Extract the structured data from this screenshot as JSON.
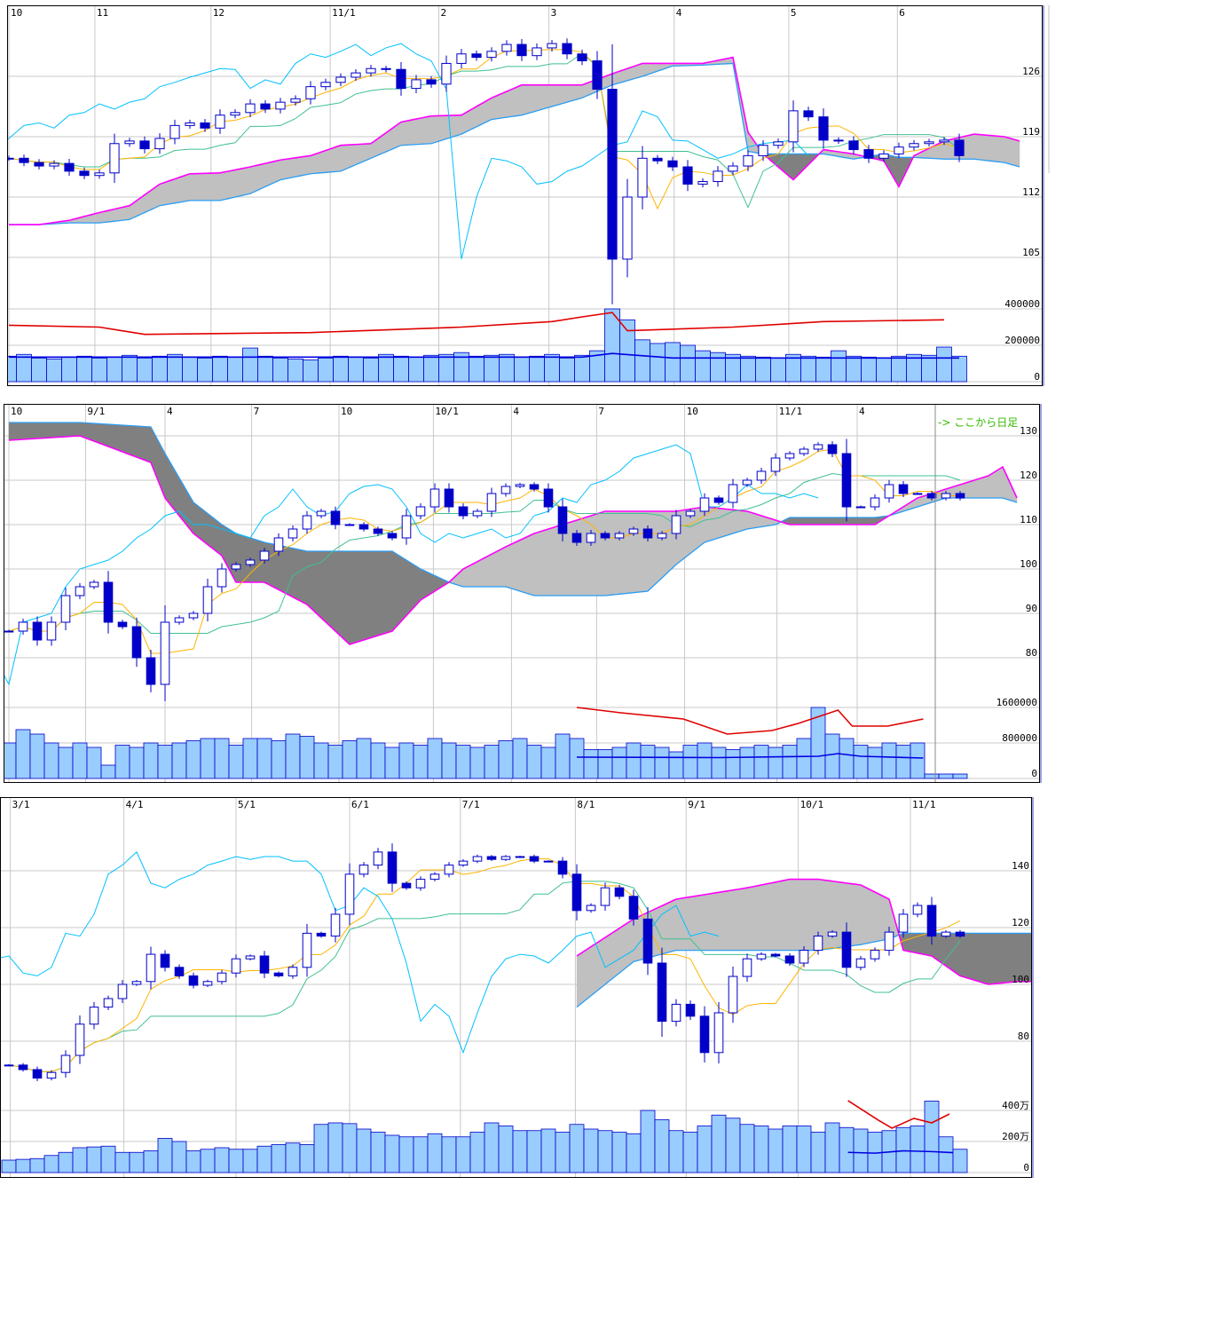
{
  "colors": {
    "up_body": "#ffffff",
    "candle": "#0000c8",
    "tenkan": "#ffb400",
    "kijun": "#40c090",
    "chikou": "#00c0ff",
    "span_a": "#ff00ff",
    "span_b": "#2a9df4",
    "cloud_bull": "#c0c0c0",
    "cloud_bear": "#808080",
    "volume": "#99ccff",
    "volume_edge": "#0000c8",
    "vol_line_red": "#e00000",
    "vol_line_blue": "#0000e0",
    "grid": "#c8c8c8",
    "note": "#33bb00"
  },
  "chart_data": [
    {
      "type": "candlestick",
      "title": "",
      "x_labels": [
        {
          "at": 0,
          "text": "10"
        },
        {
          "at": 5.7,
          "text": "11"
        },
        {
          "at": 13.4,
          "text": "12"
        },
        {
          "at": 21.3,
          "text": "11/1"
        },
        {
          "at": 28.5,
          "text": "2"
        },
        {
          "at": 35.8,
          "text": "3"
        },
        {
          "at": 44.1,
          "text": "4"
        },
        {
          "at": 51.7,
          "text": "5"
        },
        {
          "at": 58.9,
          "text": "6"
        }
      ],
      "price_ticks": [
        {
          "v": 126,
          "text": "126"
        },
        {
          "v": 119,
          "text": "119"
        },
        {
          "v": 112,
          "text": "112"
        },
        {
          "v": 105,
          "text": "105"
        }
      ],
      "volume_ticks": [
        {
          "v": 400000,
          "text": "400000"
        },
        {
          "v": 200000,
          "text": "200000"
        },
        {
          "v": 0,
          "text": "0"
        }
      ],
      "close": [
        116.5,
        116.0,
        115.6,
        115.9,
        115.0,
        114.5,
        114.8,
        118.2,
        118.5,
        117.6,
        118.8,
        120.3,
        120.6,
        120.0,
        121.5,
        121.8,
        122.8,
        122.2,
        123.0,
        123.4,
        124.8,
        125.3,
        125.9,
        126.4,
        126.9,
        126.8,
        124.6,
        125.6,
        125.1,
        127.5,
        128.6,
        128.2,
        128.9,
        129.7,
        128.4,
        129.3,
        129.8,
        128.6,
        127.8,
        124.5,
        104.8,
        112.0,
        116.5,
        116.2,
        115.5,
        113.5,
        113.8,
        115.0,
        115.6,
        116.8,
        118.0,
        118.4,
        122.0,
        121.3,
        118.6,
        118.5,
        117.5,
        116.5,
        117.0,
        117.8,
        118.2,
        118.4,
        118.6,
        116.8
      ],
      "volume": [
        140000,
        150000,
        130000,
        125000,
        135000,
        140000,
        130000,
        135000,
        145000,
        130000,
        140000,
        150000,
        135000,
        130000,
        140000,
        135000,
        185000,
        140000,
        130000,
        125000,
        120000,
        130000,
        140000,
        135000,
        130000,
        150000,
        140000,
        135000,
        145000,
        150000,
        160000,
        140000,
        145000,
        150000,
        135000,
        140000,
        150000,
        130000,
        145000,
        170000,
        400000,
        340000,
        230000,
        210000,
        215000,
        200000,
        170000,
        160000,
        150000,
        140000,
        135000,
        130000,
        150000,
        140000,
        135000,
        170000,
        140000,
        135000,
        130000,
        140000,
        150000,
        145000,
        190000,
        140000
      ],
      "cloud": [
        {
          "i": 0,
          "a": 108.8,
          "b": 108.8
        },
        {
          "i": 2,
          "a": 108.8,
          "b": 108.8
        },
        {
          "i": 4,
          "a": 109.3,
          "b": 109.0
        },
        {
          "i": 6,
          "a": 110.2,
          "b": 109.0
        },
        {
          "i": 8,
          "a": 111.0,
          "b": 109.4
        },
        {
          "i": 10,
          "a": 113.5,
          "b": 111.0
        },
        {
          "i": 12,
          "a": 114.7,
          "b": 111.6
        },
        {
          "i": 14,
          "a": 114.8,
          "b": 111.6
        },
        {
          "i": 16,
          "a": 115.5,
          "b": 112.4
        },
        {
          "i": 18,
          "a": 116.3,
          "b": 114.0
        },
        {
          "i": 20,
          "a": 116.8,
          "b": 114.7
        },
        {
          "i": 22,
          "a": 118.0,
          "b": 115.0
        },
        {
          "i": 24,
          "a": 118.2,
          "b": 116.5
        },
        {
          "i": 26,
          "a": 120.7,
          "b": 118.0
        },
        {
          "i": 28,
          "a": 121.4,
          "b": 118.2
        },
        {
          "i": 30,
          "a": 121.5,
          "b": 119.3
        },
        {
          "i": 32,
          "a": 123.5,
          "b": 121.0
        },
        {
          "i": 34,
          "a": 125.0,
          "b": 121.5
        },
        {
          "i": 36,
          "a": 125.0,
          "b": 122.5
        },
        {
          "i": 38,
          "a": 125.0,
          "b": 123.5
        },
        {
          "i": 40,
          "a": 126.3,
          "b": 125.0
        },
        {
          "i": 42,
          "a": 127.5,
          "b": 126.0
        },
        {
          "i": 44,
          "a": 127.5,
          "b": 127.2
        },
        {
          "i": 46,
          "a": 127.5,
          "b": 127.3
        },
        {
          "i": 48,
          "a": 128.2,
          "b": 127.5
        },
        {
          "i": 49,
          "a": 119.5,
          "b": 117.3
        },
        {
          "i": 50,
          "a": 117.0,
          "b": 117.0
        },
        {
          "i": 52,
          "a": 114.0,
          "b": 117.0
        },
        {
          "i": 54,
          "a": 117.5,
          "b": 117.0
        },
        {
          "i": 56,
          "a": 117.0,
          "b": 116.4
        },
        {
          "i": 58,
          "a": 116.2,
          "b": 117.0
        },
        {
          "i": 59,
          "a": 113.2,
          "b": 116.6
        },
        {
          "i": 60,
          "a": 116.8,
          "b": 116.6
        },
        {
          "i": 62,
          "a": 118.5,
          "b": 116.4
        },
        {
          "i": 64,
          "a": 119.3,
          "b": 116.4
        },
        {
          "i": 66,
          "a": 119.0,
          "b": 116.0
        },
        {
          "i": 67,
          "a": 118.5,
          "b": 115.5
        }
      ],
      "vol_line_red": [
        {
          "i": 0,
          "v": 310000
        },
        {
          "i": 6,
          "v": 300000
        },
        {
          "i": 9,
          "v": 260000
        },
        {
          "i": 20,
          "v": 270000
        },
        {
          "i": 30,
          "v": 300000
        },
        {
          "i": 36,
          "v": 330000
        },
        {
          "i": 38,
          "v": 356000
        },
        {
          "i": 40,
          "v": 380000
        },
        {
          "i": 41,
          "v": 280000
        },
        {
          "i": 48,
          "v": 300000
        },
        {
          "i": 54,
          "v": 330000
        },
        {
          "i": 62,
          "v": 340000
        }
      ],
      "vol_line_blue": [
        {
          "i": 0,
          "v": 135000
        },
        {
          "i": 38,
          "v": 135000
        },
        {
          "i": 40,
          "v": 155000
        },
        {
          "i": 44,
          "v": 130000
        },
        {
          "i": 63,
          "v": 130000
        }
      ]
    },
    {
      "type": "candlestick",
      "title": "",
      "note": "-> ここから日足",
      "note_at": 65.25,
      "x_labels": [
        {
          "at": 0,
          "text": "10"
        },
        {
          "at": 5.4,
          "text": "9/1"
        },
        {
          "at": 11,
          "text": "4"
        },
        {
          "at": 17.1,
          "text": "7"
        },
        {
          "at": 23.25,
          "text": "10"
        },
        {
          "at": 29.9,
          "text": "10/1"
        },
        {
          "at": 35.4,
          "text": "4"
        },
        {
          "at": 41.4,
          "text": "7"
        },
        {
          "at": 47.6,
          "text": "10"
        },
        {
          "at": 54.1,
          "text": "11/1"
        },
        {
          "at": 59.75,
          "text": "4"
        }
      ],
      "price_ticks": [
        {
          "v": 130,
          "text": "130"
        },
        {
          "v": 120,
          "text": "120"
        },
        {
          "v": 110,
          "text": "110"
        },
        {
          "v": 100,
          "text": "100"
        },
        {
          "v": 90,
          "text": "90"
        },
        {
          "v": 80,
          "text": "80"
        }
      ],
      "volume_ticks": [
        {
          "v": 1600000,
          "text": "1600000"
        },
        {
          "v": 800000,
          "text": "800000"
        },
        {
          "v": 0,
          "text": "0"
        }
      ],
      "close": [
        86,
        88,
        84,
        88,
        94,
        96,
        97,
        88,
        87,
        80,
        74,
        88,
        89,
        90,
        96,
        100,
        101,
        102,
        104,
        107,
        109,
        112,
        113,
        110,
        110,
        109,
        108,
        107,
        112,
        114,
        118,
        114,
        112,
        113,
        117,
        118.6,
        119,
        118,
        114,
        108,
        106,
        108,
        107,
        108,
        109,
        107,
        108,
        112,
        113,
        116,
        115,
        119,
        120,
        122,
        125,
        126,
        127,
        128,
        126,
        114,
        114,
        116,
        119,
        117,
        117,
        116,
        117,
        116
      ],
      "volume": [
        800000,
        1100000,
        1000000,
        800000,
        700000,
        800000,
        700000,
        300000,
        750000,
        700000,
        800000,
        750000,
        800000,
        850000,
        900000,
        900000,
        750000,
        900000,
        900000,
        850000,
        1000000,
        950000,
        800000,
        750000,
        850000,
        900000,
        800000,
        700000,
        800000,
        750000,
        900000,
        800000,
        750000,
        700000,
        750000,
        850000,
        900000,
        750000,
        700000,
        1000000,
        900000,
        650000,
        650000,
        700000,
        800000,
        750000,
        700000,
        600000,
        750000,
        800000,
        700000,
        650000,
        700000,
        750000,
        700000,
        750000,
        900000,
        1600000,
        1000000,
        900000,
        750000,
        700000,
        800000,
        750000,
        800000,
        100000,
        100000,
        100000
      ],
      "cloud": [
        {
          "i": 0,
          "a": 129,
          "b": 133
        },
        {
          "i": 5,
          "a": 130,
          "b": 133
        },
        {
          "i": 10,
          "a": 124,
          "b": 132
        },
        {
          "i": 11,
          "a": 116,
          "b": 126
        },
        {
          "i": 13,
          "a": 108,
          "b": 115
        },
        {
          "i": 15,
          "a": 103,
          "b": 110
        },
        {
          "i": 16,
          "a": 97,
          "b": 108
        },
        {
          "i": 18,
          "a": 97,
          "b": 106
        },
        {
          "i": 21,
          "a": 92,
          "b": 104
        },
        {
          "i": 24,
          "a": 83,
          "b": 104
        },
        {
          "i": 27,
          "a": 86,
          "b": 104
        },
        {
          "i": 29,
          "a": 93,
          "b": 100
        },
        {
          "i": 31,
          "a": 97,
          "b": 97
        },
        {
          "i": 32,
          "a": 100,
          "b": 96
        },
        {
          "i": 35,
          "a": 105,
          "b": 96
        },
        {
          "i": 37,
          "a": 108,
          "b": 94
        },
        {
          "i": 42,
          "a": 113,
          "b": 94
        },
        {
          "i": 45,
          "a": 113,
          "b": 95
        },
        {
          "i": 47,
          "a": 113,
          "b": 101
        },
        {
          "i": 49,
          "a": 114,
          "b": 106
        },
        {
          "i": 52,
          "a": 113,
          "b": 109
        },
        {
          "i": 54,
          "a": 111,
          "b": 110
        },
        {
          "i": 55,
          "a": 110,
          "b": 111.6
        },
        {
          "i": 61,
          "a": 110,
          "b": 111.6
        },
        {
          "i": 62,
          "a": 112,
          "b": 112
        },
        {
          "i": 64,
          "a": 116,
          "b": 114
        },
        {
          "i": 66,
          "a": 118,
          "b": 116
        },
        {
          "i": 69,
          "a": 121,
          "b": 116
        },
        {
          "i": 70,
          "a": 123,
          "b": 116
        },
        {
          "i": 71,
          "a": 116,
          "b": 115
        }
      ],
      "vol_line_red": [
        {
          "i": 40,
          "v": 1600000
        },
        {
          "i": 43.1,
          "v": 1480000
        },
        {
          "i": 47.5,
          "v": 1340000
        },
        {
          "i": 50.6,
          "v": 1000000
        },
        {
          "i": 53.75,
          "v": 1080000
        },
        {
          "i": 55.6,
          "v": 1240000
        },
        {
          "i": 58.4,
          "v": 1540000
        },
        {
          "i": 59.4,
          "v": 1180000
        },
        {
          "i": 61.9,
          "v": 1180000
        },
        {
          "i": 64.4,
          "v": 1340000
        }
      ],
      "vol_line_blue": [
        {
          "i": 40,
          "v": 480000
        },
        {
          "i": 50,
          "v": 470000
        },
        {
          "i": 57,
          "v": 500000
        },
        {
          "i": 58.4,
          "v": 560000
        },
        {
          "i": 60,
          "v": 500000
        },
        {
          "i": 64.4,
          "v": 460000
        }
      ]
    },
    {
      "type": "candlestick",
      "title": "",
      "x_labels": [
        {
          "at": 0.1,
          "text": "3/1"
        },
        {
          "at": 8.1,
          "text": "4/1"
        },
        {
          "at": 16,
          "text": "5/1"
        },
        {
          "at": 24,
          "text": "6/1"
        },
        {
          "at": 31.8,
          "text": "7/1"
        },
        {
          "at": 39.9,
          "text": "8/1"
        },
        {
          "at": 47.7,
          "text": "9/1"
        },
        {
          "at": 55.6,
          "text": "10/1"
        },
        {
          "at": 63.5,
          "text": "11/1"
        }
      ],
      "price_ticks": [
        {
          "v": 140,
          "text": "140"
        },
        {
          "v": 120,
          "text": "120"
        },
        {
          "v": 100,
          "text": "100"
        },
        {
          "v": 80,
          "text": "80"
        }
      ],
      "volume_ticks": [
        {
          "v": 400,
          "text": "400万"
        },
        {
          "v": 200,
          "text": "200万"
        },
        {
          "v": 0,
          "text": "0"
        }
      ],
      "close": [
        71.6,
        70,
        67,
        69,
        75,
        86,
        92,
        95,
        100,
        101,
        110.6,
        106,
        103,
        99.7,
        101,
        104,
        109,
        110,
        104,
        103,
        106,
        118,
        117,
        124.7,
        138.8,
        142,
        146.6,
        135.6,
        134,
        137,
        138.8,
        142,
        143.4,
        145,
        144,
        145,
        145,
        143.4,
        143.4,
        138.8,
        126,
        127.8,
        134,
        131,
        123,
        107.5,
        87,
        93,
        88.8,
        76,
        90,
        102.8,
        109,
        110.6,
        110,
        107.5,
        112,
        117,
        118.4,
        106,
        109,
        112,
        118.4,
        124.7,
        127.8,
        117,
        118.4,
        117
      ],
      "volume": [
        80,
        85,
        90,
        110,
        130,
        160,
        165,
        170,
        130,
        130,
        140,
        220,
        200,
        140,
        150,
        160,
        150,
        150,
        170,
        180,
        190,
        180,
        310,
        320,
        315,
        280,
        260,
        240,
        230,
        230,
        250,
        230,
        230,
        260,
        320,
        300,
        270,
        270,
        280,
        260,
        310,
        280,
        270,
        260,
        250,
        400,
        340,
        270,
        260,
        300,
        370,
        350,
        310,
        300,
        280,
        300,
        300,
        260,
        320,
        290,
        280,
        260,
        270,
        290,
        300,
        460,
        230,
        150
      ],
      "cloud": [
        {
          "i": 40,
          "a": 110,
          "b": 92
        },
        {
          "i": 44,
          "a": 123,
          "b": 108
        },
        {
          "i": 47,
          "a": 130,
          "b": 112
        },
        {
          "i": 52,
          "a": 134,
          "b": 112
        },
        {
          "i": 55,
          "a": 137,
          "b": 112
        },
        {
          "i": 57,
          "a": 137,
          "b": 112
        },
        {
          "i": 60,
          "a": 135,
          "b": 114
        },
        {
          "i": 62,
          "a": 130,
          "b": 116
        },
        {
          "i": 63,
          "a": 112,
          "b": 118
        },
        {
          "i": 65,
          "a": 110,
          "b": 118
        },
        {
          "i": 67,
          "a": 103,
          "b": 118
        },
        {
          "i": 69,
          "a": 100,
          "b": 118
        },
        {
          "i": 71,
          "a": 101,
          "b": 118
        },
        {
          "i": 72,
          "a": 101,
          "b": 118
        }
      ],
      "vol_line_red": [
        {
          "i": 59.1,
          "v": 463
        },
        {
          "i": 61.25,
          "v": 337
        },
        {
          "i": 62.2,
          "v": 286
        },
        {
          "i": 63.75,
          "v": 349
        },
        {
          "i": 65,
          "v": 320
        },
        {
          "i": 66.25,
          "v": 377
        }
      ],
      "vol_line_blue": [
        {
          "i": 59.1,
          "v": 130
        },
        {
          "i": 61,
          "v": 125
        },
        {
          "i": 63,
          "v": 140
        },
        {
          "i": 65,
          "v": 135
        },
        {
          "i": 66.5,
          "v": 128
        }
      ]
    }
  ]
}
